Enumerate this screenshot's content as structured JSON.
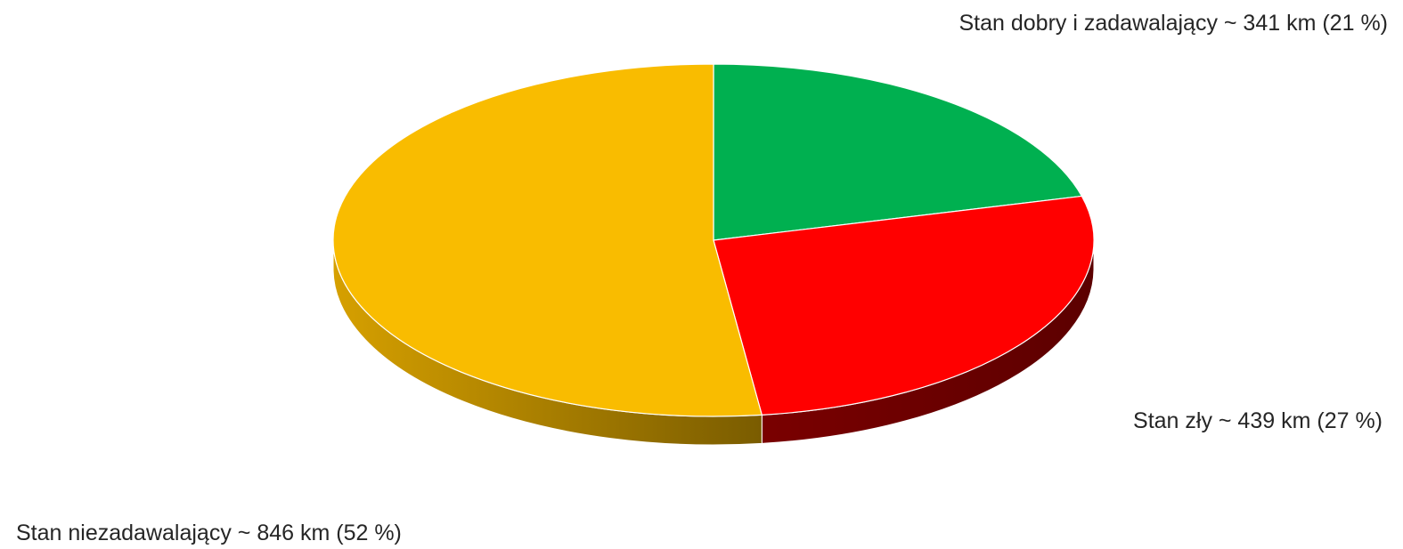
{
  "chart_data": {
    "type": "pie",
    "style": "3d",
    "start_angle_deg": 90,
    "direction": "clockwise",
    "slices": [
      {
        "name": "Stan dobry i zadawalający",
        "value": 341,
        "unit": "km",
        "percent": 21,
        "label": "Stan dobry i zadawalający ~ 341 km (21 %)",
        "color": "#00B050",
        "side_color_dark": "#005F2B",
        "side_color_light": "#008F41"
      },
      {
        "name": "Stan zły",
        "value": 439,
        "unit": "km",
        "percent": 27,
        "label": "Stan zły ~ 439 km (27 %)",
        "color": "#FF0000",
        "side_color_dark": "#5C0000",
        "side_color_light": "#7A0000"
      },
      {
        "name": "Stan niezadawalający",
        "value": 846,
        "unit": "km",
        "percent": 52,
        "label": "Stan niezadawalający ~ 846 km (52 %)",
        "color": "#F9BC00",
        "side_color_dark": "#7A5C00",
        "side_color_light": "#D6A000"
      }
    ],
    "legend": "none",
    "label_color": "#262626",
    "edge_color": "#FFFFFF"
  }
}
